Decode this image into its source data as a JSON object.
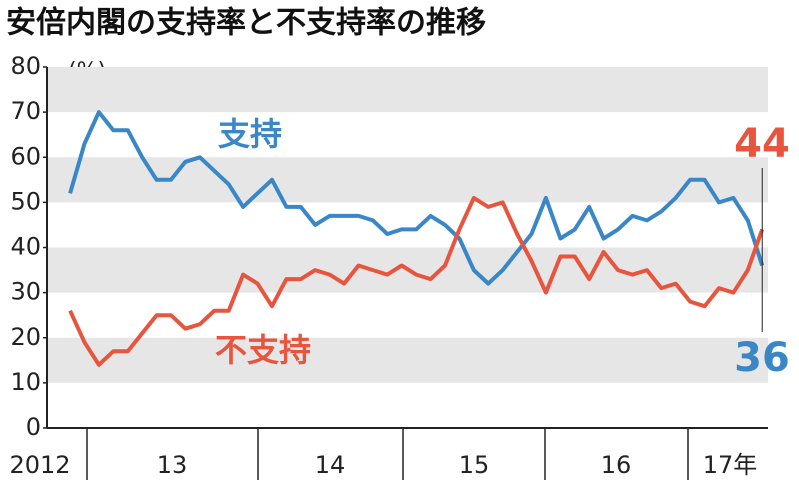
{
  "chart_data": {
    "type": "line",
    "title": "安倍内閣の支持率と不支持率の推移",
    "y_label": "(%)",
    "x_labels": [
      "2012",
      "13",
      "14",
      "15",
      "16",
      "17年"
    ],
    "x": [
      0,
      1,
      2,
      3,
      4,
      5,
      6,
      7,
      8,
      9,
      10,
      11,
      12,
      13,
      14,
      15,
      16,
      17,
      18,
      19,
      20,
      21,
      22,
      23,
      24,
      25,
      26,
      27,
      28,
      29,
      30,
      31,
      32,
      33,
      34,
      35,
      36,
      37,
      38,
      39,
      40,
      41,
      42,
      43,
      44,
      45,
      46,
      47,
      48
    ],
    "xlim": [
      -1.6,
      48.4
    ],
    "ylim": [
      0,
      80
    ],
    "yticks": [
      0,
      10,
      20,
      30,
      40,
      50,
      60,
      70,
      80
    ],
    "bands": true,
    "series": [
      {
        "name": "支持",
        "color": "#3a87c8",
        "values": [
          52,
          63,
          70,
          66,
          66,
          60,
          55,
          55,
          59,
          60,
          57,
          54,
          49,
          52,
          55,
          49,
          49,
          45,
          47,
          47,
          47,
          46,
          43,
          44,
          44,
          47,
          45,
          42,
          35,
          32,
          35,
          39,
          43,
          51,
          42,
          44,
          49,
          42,
          44,
          47,
          46,
          48,
          51,
          55,
          55,
          50,
          51,
          46,
          36
        ]
      },
      {
        "name": "不支持",
        "color": "#e8553f",
        "values": [
          26,
          19,
          14,
          17,
          17,
          21,
          25,
          25,
          22,
          23,
          26,
          26,
          34,
          32,
          27,
          33,
          33,
          35,
          34,
          32,
          36,
          35,
          34,
          36,
          34,
          33,
          36,
          44,
          51,
          49,
          50,
          43,
          37,
          30,
          38,
          38,
          33,
          39,
          35,
          34,
          35,
          31,
          32,
          28,
          27,
          31,
          30,
          35,
          44
        ]
      }
    ]
  }
}
